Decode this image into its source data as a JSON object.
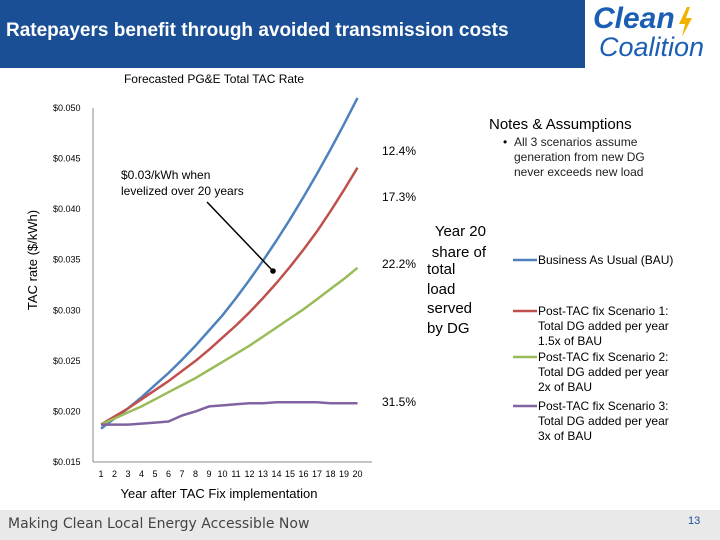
{
  "header": {
    "title": "Ratepayers benefit through avoided transmission costs"
  },
  "logo": {
    "line1": "Clean",
    "line2": "Coalition",
    "icon": "lightning-bolt-icon"
  },
  "footer": {
    "tagline": "Making Clean Local Energy Accessible Now",
    "page_number": "13"
  },
  "colors": {
    "header": "#1a4f95",
    "bau": "#4f81bd",
    "s1": "#c0504d",
    "s2": "#9bbb59",
    "s3": "#8064a2"
  },
  "chart_data": {
    "type": "line",
    "title": "Forecasted PG&E Total TAC Rate",
    "xlabel": "Year after TAC Fix implementation",
    "ylabel": "TAC rate ($/kWh)",
    "ylim": [
      0.015,
      0.05
    ],
    "yticks": [
      "$0.050",
      "$0.045",
      "$0.040",
      "$0.035",
      "$0.030",
      "$0.025",
      "$0.020",
      "$0.015"
    ],
    "ytick_values": [
      0.05,
      0.045,
      0.04,
      0.035,
      0.03,
      0.025,
      0.02,
      0.015
    ],
    "categories": [
      "1",
      "2",
      "3",
      "4",
      "5",
      "6",
      "7",
      "8",
      "9",
      "10",
      "11",
      "12",
      "13",
      "14",
      "15",
      "16",
      "17",
      "18",
      "19",
      "20"
    ],
    "series": [
      {
        "name": "Business As Usual (BAU)",
        "color": "#4f81bd",
        "values": [
          0.0183,
          0.0193,
          0.0203,
          0.0214,
          0.0226,
          0.0238,
          0.0251,
          0.0265,
          0.028,
          0.0295,
          0.0312,
          0.033,
          0.0349,
          0.0369,
          0.039,
          0.0412,
          0.0435,
          0.0459,
          0.0484,
          0.051
        ]
      },
      {
        "name": "Post-TAC fix Scenario 1: Total DG added per year 1.5x of BAU",
        "color": "#c0504d",
        "values": [
          0.0187,
          0.0195,
          0.0203,
          0.0212,
          0.0221,
          0.023,
          0.024,
          0.025,
          0.0261,
          0.0273,
          0.0285,
          0.0298,
          0.0312,
          0.0327,
          0.0343,
          0.036,
          0.0378,
          0.0398,
          0.0419,
          0.0441
        ]
      },
      {
        "name": "Post-TAC fix Scenario 2: Total DG added per year 2x of BAU",
        "color": "#9bbb59",
        "values": [
          0.0187,
          0.0193,
          0.0199,
          0.0205,
          0.0212,
          0.0219,
          0.0226,
          0.0233,
          0.0241,
          0.0249,
          0.0257,
          0.0265,
          0.0274,
          0.0283,
          0.0292,
          0.0301,
          0.0311,
          0.0321,
          0.0331,
          0.0342
        ]
      },
      {
        "name": "Post-TAC fix Scenario 3: Total DG added per year 3x of BAU",
        "color": "#8064a2",
        "values": [
          0.0187,
          0.0187,
          0.0187,
          0.0188,
          0.0189,
          0.019,
          0.0196,
          0.02,
          0.0205,
          0.0206,
          0.0207,
          0.0208,
          0.0208,
          0.0209,
          0.0209,
          0.0209,
          0.0209,
          0.0208,
          0.0208,
          0.0208
        ]
      }
    ],
    "end_labels": [
      "12.4%",
      "17.3%",
      "22.2%",
      "31.5%"
    ],
    "share_label": [
      "Year 20",
      "share of",
      "total",
      "load",
      "served",
      "by DG"
    ],
    "annotation": [
      "$0.03/kWh when",
      "levelized over 20 years"
    ],
    "notes_title": "Notes & Assumptions",
    "notes_bullet": "•",
    "notes": [
      "All 3 scenarios assume",
      "generation from new DG",
      "never exceeds new load"
    ],
    "legend": [
      {
        "key": "bau",
        "lines": [
          "Business As Usual (BAU)"
        ]
      },
      {
        "key": "s1",
        "lines": [
          "Post-TAC fix Scenario 1:",
          "Total DG added per year",
          "1.5x of BAU"
        ]
      },
      {
        "key": "s2",
        "lines": [
          "Post-TAC fix Scenario 2:",
          "Total DG added per year",
          "2x of BAU"
        ]
      },
      {
        "key": "s3",
        "lines": [
          "Post-TAC fix Scenario 3:",
          "Total DG added per year",
          "3x of BAU"
        ]
      }
    ]
  }
}
